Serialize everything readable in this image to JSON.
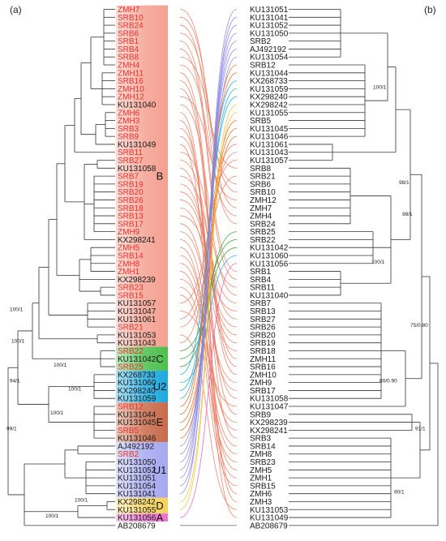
{
  "panels": {
    "left": "(a)",
    "right": "(b)"
  },
  "colors": {
    "tree_line": "#333333",
    "label_red": "#e8312a",
    "label_black": "#1a1a1a"
  },
  "left_taxa": [
    {
      "n": "ZMH7",
      "r": true
    },
    {
      "n": "SRB10",
      "r": true
    },
    {
      "n": "SRB24",
      "r": true
    },
    {
      "n": "SRB6",
      "r": true
    },
    {
      "n": "SRB1",
      "r": true
    },
    {
      "n": "SRB4",
      "r": true
    },
    {
      "n": "SRB8",
      "r": true
    },
    {
      "n": "ZMH4",
      "r": true
    },
    {
      "n": "ZMH11",
      "r": true
    },
    {
      "n": "SRB16",
      "r": true
    },
    {
      "n": "ZMH10",
      "r": true
    },
    {
      "n": "ZMH12",
      "r": true
    },
    {
      "n": "KU131040",
      "r": false
    },
    {
      "n": "ZMH6",
      "r": true
    },
    {
      "n": "ZMH3",
      "r": true
    },
    {
      "n": "SRB3",
      "r": true
    },
    {
      "n": "SRB9",
      "r": true
    },
    {
      "n": "KU131049",
      "r": false
    },
    {
      "n": "SRB11",
      "r": true
    },
    {
      "n": "SRB27",
      "r": true
    },
    {
      "n": "KU131058",
      "r": false
    },
    {
      "n": "SRB7",
      "r": true
    },
    {
      "n": "SRB19",
      "r": true
    },
    {
      "n": "SRB20",
      "r": true
    },
    {
      "n": "SRB26",
      "r": true
    },
    {
      "n": "SRB18",
      "r": true
    },
    {
      "n": "SRB13",
      "r": true
    },
    {
      "n": "SRB17",
      "r": true
    },
    {
      "n": "ZMH9",
      "r": true
    },
    {
      "n": "KX298241",
      "r": false
    },
    {
      "n": "ZMH5",
      "r": true
    },
    {
      "n": "SRB14",
      "r": true
    },
    {
      "n": "ZMH8",
      "r": true
    },
    {
      "n": "ZMH1",
      "r": true
    },
    {
      "n": "KX298239",
      "r": false
    },
    {
      "n": "SRB23",
      "r": true
    },
    {
      "n": "SRB15",
      "r": true
    },
    {
      "n": "KU131057",
      "r": false
    },
    {
      "n": "KU131047",
      "r": false
    },
    {
      "n": "KU131061",
      "r": false
    },
    {
      "n": "SRB21",
      "r": true
    },
    {
      "n": "KU131053",
      "r": false
    },
    {
      "n": "KU131043",
      "r": false
    },
    {
      "n": "SRB22",
      "r": true
    },
    {
      "n": "KU131042",
      "r": false
    },
    {
      "n": "SRB25",
      "r": true
    },
    {
      "n": "KX268733",
      "r": false
    },
    {
      "n": "KU131060",
      "r": false
    },
    {
      "n": "KX298240",
      "r": false
    },
    {
      "n": "KU131059",
      "r": false
    },
    {
      "n": "SRB12",
      "r": true
    },
    {
      "n": "KU131044",
      "r": false
    },
    {
      "n": "KU131045",
      "r": false
    },
    {
      "n": "SRB5",
      "r": true
    },
    {
      "n": "KU131046",
      "r": false
    },
    {
      "n": "AJ492192",
      "r": false
    },
    {
      "n": "SRB2",
      "r": true
    },
    {
      "n": "KU131050",
      "r": false
    },
    {
      "n": "KU131052",
      "r": false
    },
    {
      "n": "KU131051",
      "r": false
    },
    {
      "n": "KU131054",
      "r": false
    },
    {
      "n": "KU131041",
      "r": false
    },
    {
      "n": "KX298242",
      "r": false
    },
    {
      "n": "KU131055",
      "r": false
    },
    {
      "n": "KU131056",
      "r": false
    },
    {
      "n": "AB208679",
      "r": false
    }
  ],
  "right_taxa": [
    "KU131051",
    "KU131041",
    "KU131052",
    "KU131050",
    "SRB2",
    "AJ492192",
    "KU131054",
    "SRB12",
    "KU131044",
    "KX268733",
    "KU131059",
    "KX298240",
    "KX298242",
    "KU131055",
    "SRB5",
    "KU131045",
    "KU131046",
    "KU131061",
    "KU131043",
    "KU131057",
    "SRB8",
    "SRB21",
    "SRB6",
    "SRB10",
    "ZMH12",
    "ZMH7",
    "ZMH4",
    "SRB24",
    "SRB25",
    "SRB22",
    "KU131042",
    "KU131060",
    "KU131056",
    "SRB1",
    "SRB4",
    "SRB11",
    "KU131040",
    "SRB7",
    "SRB13",
    "SRB27",
    "SRB26",
    "SRB20",
    "SRB19",
    "SRB18",
    "ZMH11",
    "SRB16",
    "ZMH10",
    "ZMH9",
    "SRB17",
    "KU131058",
    "KU131047",
    "SRB9",
    "KX298239",
    "KX298241",
    "SRB3",
    "SRB14",
    "ZMH8",
    "SRB23",
    "ZMH5",
    "ZMH1",
    "SRB15",
    "ZMH6",
    "ZMH3",
    "KU131053",
    "KU131049",
    "AB208679"
  ],
  "clades": [
    {
      "label": "B",
      "from": 0,
      "to": 42,
      "color": "#f4a090"
    },
    {
      "label": "C",
      "from": 43,
      "to": 45,
      "color": "#4cbf4c"
    },
    {
      "label": "U2",
      "from": 46,
      "to": 49,
      "color": "#1ea9df"
    },
    {
      "label": "E",
      "from": 50,
      "to": 54,
      "color": "#c86a4a"
    },
    {
      "label": "U1",
      "from": 55,
      "to": 61,
      "color": "#a6a8f0"
    },
    {
      "label": "D",
      "from": 62,
      "to": 63,
      "color": "#f3d25a"
    },
    {
      "label": "A",
      "from": 64,
      "to": 64,
      "color": "#ee6fd0"
    }
  ],
  "left_support": [
    "100/1",
    "100/1",
    "100/1",
    "94/1",
    "100/1",
    "100/1",
    "99/1",
    "100/1",
    "100/1"
  ],
  "right_support": [
    "100/1",
    "98/1",
    "98/1",
    "100/1",
    "75/0.80",
    "80/0.90",
    "91/1",
    "90/1"
  ]
}
